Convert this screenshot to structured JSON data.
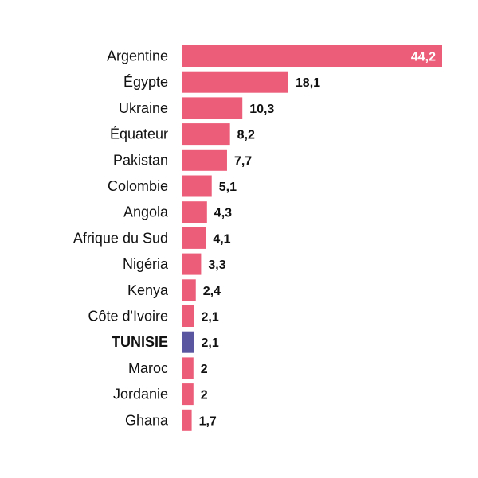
{
  "colors": {
    "bar": "#ec5d79",
    "highlight": "#5a56a0",
    "label": "#111111",
    "inside_label": "#ffffff"
  },
  "chart_data": {
    "type": "bar",
    "orientation": "horizontal",
    "title": "",
    "xlabel": "",
    "ylabel": "",
    "grid": false,
    "legend": "none",
    "xlim": [
      0,
      44.2
    ],
    "categories": [
      "Argentine",
      "Égypte",
      "Ukraine",
      "Équateur",
      "Pakistan",
      "Colombie",
      "Angola",
      "Afrique du Sud",
      "Nigéria",
      "Kenya",
      "Côte d'Ivoire",
      "TUNISIE",
      "Maroc",
      "Jordanie",
      "Ghana"
    ],
    "values": [
      44.2,
      18.1,
      10.3,
      8.2,
      7.7,
      5.1,
      4.3,
      4.1,
      3.3,
      2.4,
      2.1,
      2.1,
      2,
      2,
      1.7
    ],
    "value_labels": [
      "44,2",
      "18,1",
      "10,3",
      "8,2",
      "7,7",
      "5,1",
      "4,3",
      "4,1",
      "3,3",
      "2,4",
      "2,1",
      "2,1",
      "2",
      "2",
      "1,7"
    ],
    "highlight_category": "TUNISIE"
  }
}
